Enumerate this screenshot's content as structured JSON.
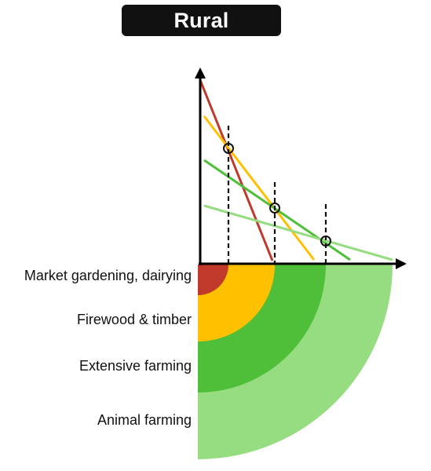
{
  "title": "Rural",
  "zones": [
    {
      "label": "Market gardening, dairying",
      "color": "#c0392b"
    },
    {
      "label": "Firewood & timber",
      "color": "#ffc000"
    },
    {
      "label": "Extensive farming",
      "color": "#4fbf3a"
    },
    {
      "label": "Animal farming",
      "color": "#96dc80"
    }
  ]
}
